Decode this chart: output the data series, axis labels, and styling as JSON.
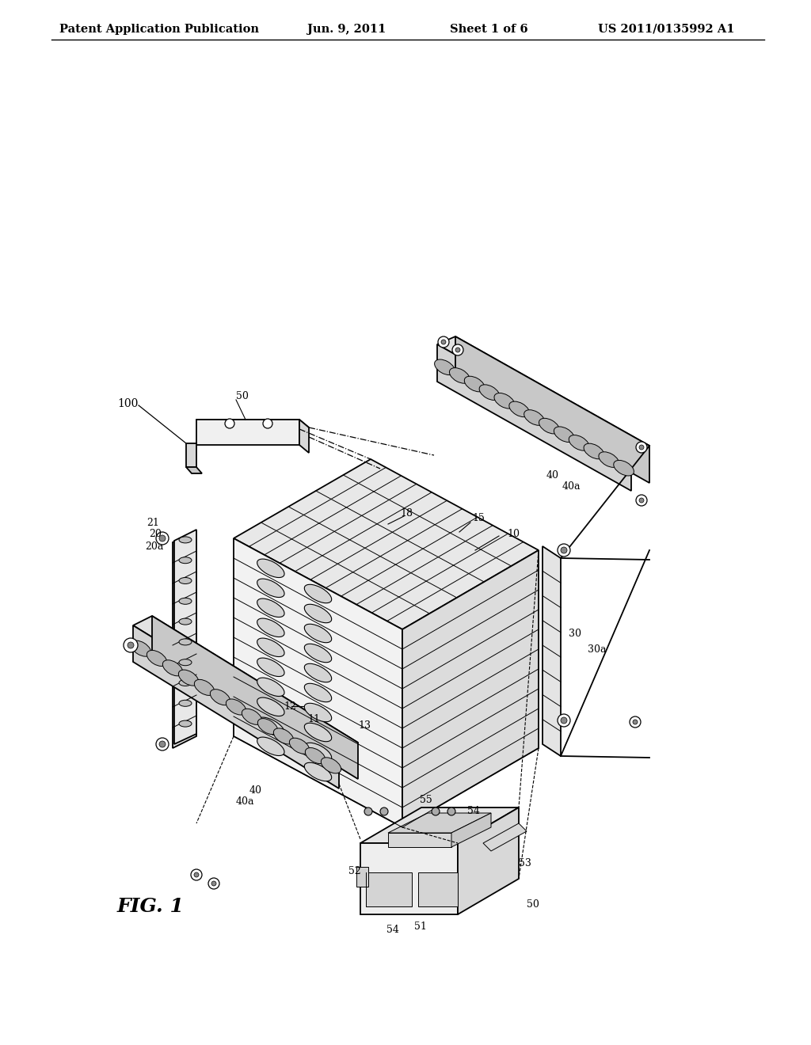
{
  "bg_color": "#ffffff",
  "line_color": "#000000",
  "header_text": "Patent Application Publication",
  "header_date": "Jun. 9, 2011",
  "header_sheet": "Sheet 1 of 6",
  "header_patent": "US 2011/0135992 A1",
  "fig_label": "FIG. 1",
  "lw_main": 1.3,
  "lw_thin": 0.7,
  "lw_thick": 1.8
}
